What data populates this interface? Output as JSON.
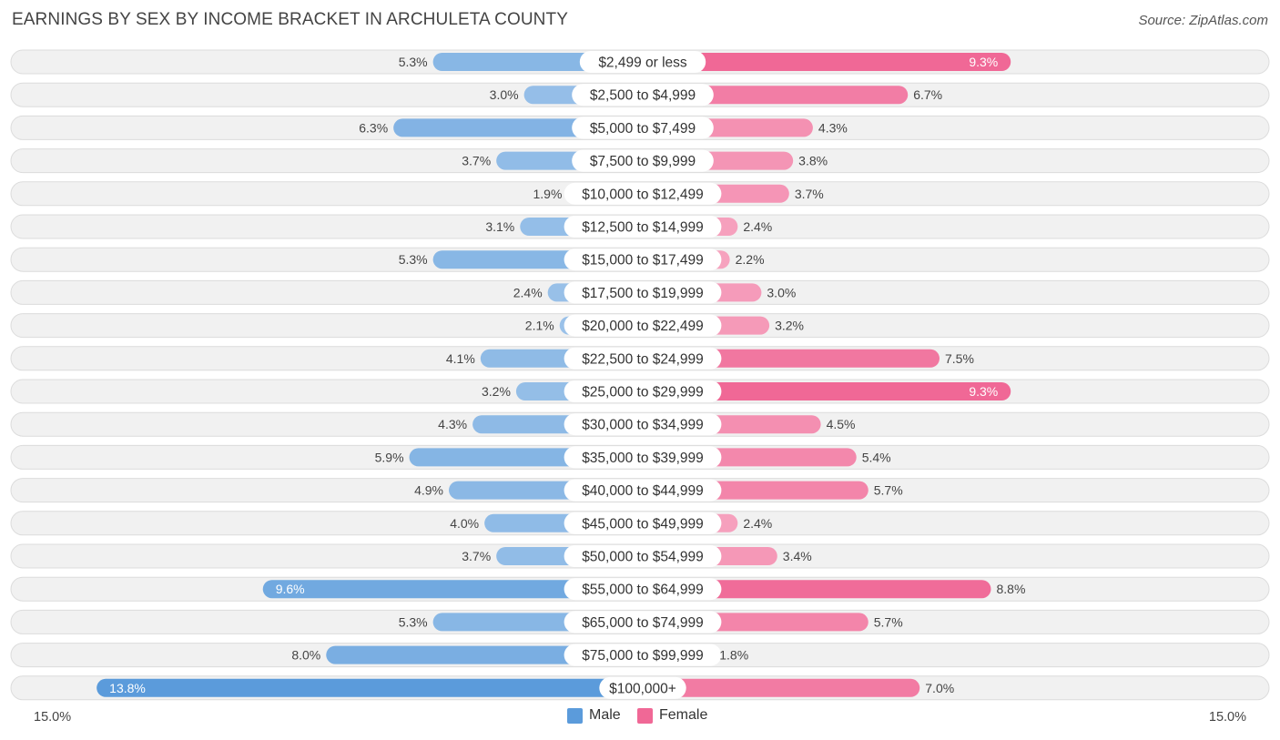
{
  "title": "EARNINGS BY SEX BY INCOME BRACKET IN ARCHULETA COUNTY",
  "source": "Source: ZipAtlas.com",
  "colors": {
    "male": "#5b9bdb",
    "female": "#f06896",
    "row_bg": "#f1f1f1",
    "row_border": "#dcdcdc"
  },
  "legend": {
    "male_label": "Male",
    "female_label": "Female"
  },
  "axis": {
    "left_label": "15.0%",
    "right_label": "15.0%"
  },
  "chart_data": {
    "type": "bar",
    "orientation": "horizontal-diverging",
    "title": "EARNINGS BY SEX BY INCOME BRACKET IN ARCHULETA COUNTY",
    "xlim": [
      0,
      15.0
    ],
    "unit": "%",
    "categories": [
      "$2,499 or less",
      "$2,500 to $4,999",
      "$5,000 to $7,499",
      "$7,500 to $9,999",
      "$10,000 to $12,499",
      "$12,500 to $14,999",
      "$15,000 to $17,499",
      "$17,500 to $19,999",
      "$20,000 to $22,499",
      "$22,500 to $24,999",
      "$25,000 to $29,999",
      "$30,000 to $34,999",
      "$35,000 to $39,999",
      "$40,000 to $44,999",
      "$45,000 to $49,999",
      "$50,000 to $54,999",
      "$55,000 to $64,999",
      "$65,000 to $74,999",
      "$75,000 to $99,999",
      "$100,000+"
    ],
    "series": [
      {
        "name": "Male",
        "values": [
          5.3,
          3.0,
          6.3,
          3.7,
          1.9,
          3.1,
          5.3,
          2.4,
          2.1,
          4.1,
          3.2,
          4.3,
          5.9,
          4.9,
          4.0,
          3.7,
          9.6,
          5.3,
          8.0,
          13.8
        ]
      },
      {
        "name": "Female",
        "values": [
          9.3,
          6.7,
          4.3,
          3.8,
          3.7,
          2.4,
          2.2,
          3.0,
          3.2,
          7.5,
          9.3,
          4.5,
          5.4,
          5.7,
          2.4,
          3.4,
          8.8,
          5.7,
          1.8,
          7.0
        ]
      }
    ],
    "value_labels": {
      "Male": [
        "5.3%",
        "3.0%",
        "6.3%",
        "3.7%",
        "1.9%",
        "3.1%",
        "5.3%",
        "2.4%",
        "2.1%",
        "4.1%",
        "3.2%",
        "4.3%",
        "5.9%",
        "4.9%",
        "4.0%",
        "3.7%",
        "9.6%",
        "5.3%",
        "8.0%",
        "13.8%"
      ],
      "Female": [
        "9.3%",
        "6.7%",
        "4.3%",
        "3.8%",
        "3.7%",
        "2.4%",
        "2.2%",
        "3.0%",
        "3.2%",
        "7.5%",
        "9.3%",
        "4.5%",
        "5.4%",
        "5.7%",
        "2.4%",
        "3.4%",
        "8.8%",
        "5.7%",
        "1.8%",
        "7.0%"
      ]
    },
    "legend_position": "bottom-center"
  }
}
